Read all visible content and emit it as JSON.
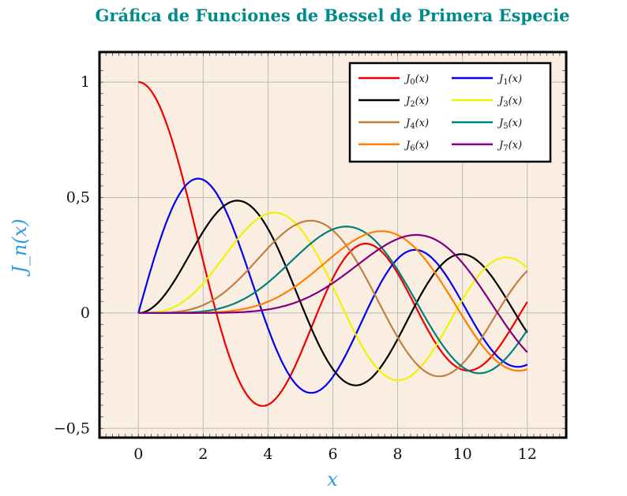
{
  "chart_data": {
    "type": "line",
    "title": "Gráfica de Funciones de Bessel de Primera Especie",
    "xlabel": "x",
    "ylabel": "J_n(x)",
    "xlim": [
      -1.2,
      13.2
    ],
    "ylim": [
      -0.54,
      1.13
    ],
    "domain": [
      0,
      12
    ],
    "xticks": [
      0,
      2,
      4,
      6,
      8,
      10,
      12
    ],
    "xtick_labels": [
      "0",
      "2",
      "4",
      "6",
      "8",
      "10",
      "12"
    ],
    "yticks": [
      -0.5,
      0,
      0.5,
      1
    ],
    "ytick_labels": [
      "−0,5",
      "0",
      "0,5",
      "1"
    ],
    "grid": true,
    "legend_position": "top-right",
    "legend_columns": 2,
    "background": "#faeee3",
    "title_color": "#008b8b",
    "label_color": "#2e9be0",
    "series": [
      {
        "name": "J0(x)",
        "function": "besselj",
        "order": 0,
        "color": "#ee0000"
      },
      {
        "name": "J1(x)",
        "function": "besselj",
        "order": 1,
        "color": "#0000ee"
      },
      {
        "name": "J2(x)",
        "function": "besselj",
        "order": 2,
        "color": "#000000"
      },
      {
        "name": "J3(x)",
        "function": "besselj",
        "order": 3,
        "color": "#f2f200"
      },
      {
        "name": "J4(x)",
        "function": "besselj",
        "order": 4,
        "color": "#bf8040"
      },
      {
        "name": "J5(x)",
        "function": "besselj",
        "order": 5,
        "color": "#00807a"
      },
      {
        "name": "J6(x)",
        "function": "besselj",
        "order": 6,
        "color": "#ff8000"
      },
      {
        "name": "J7(x)",
        "function": "besselj",
        "order": 7,
        "color": "#800080"
      }
    ]
  }
}
